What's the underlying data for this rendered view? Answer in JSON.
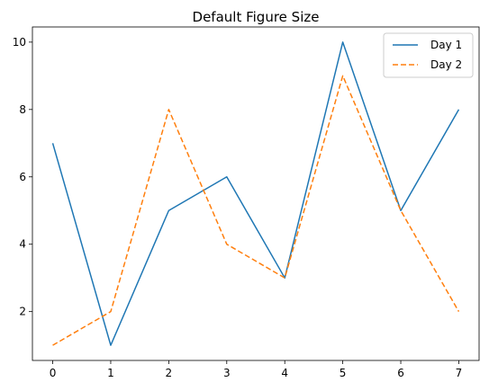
{
  "chart_data": {
    "type": "line",
    "title": "Default Figure Size",
    "xlabel": "",
    "ylabel": "",
    "x": [
      0,
      1,
      2,
      3,
      4,
      5,
      6,
      7
    ],
    "series": [
      {
        "name": "Day 1",
        "values": [
          7,
          1,
          5,
          6,
          3,
          10,
          5,
          8
        ],
        "color": "#1f77b4",
        "style": "solid"
      },
      {
        "name": "Day 2",
        "values": [
          1,
          2,
          8,
          4,
          3,
          9,
          5,
          2
        ],
        "color": "#ff7f0e",
        "style": "dashed"
      }
    ],
    "xlim": [
      -0.35,
      7.35
    ],
    "ylim": [
      0.55,
      10.45
    ],
    "xticks": [
      0,
      1,
      2,
      3,
      4,
      5,
      6,
      7
    ],
    "yticks": [
      2,
      4,
      6,
      8,
      10
    ],
    "grid": false,
    "legend_position": "top-right"
  }
}
